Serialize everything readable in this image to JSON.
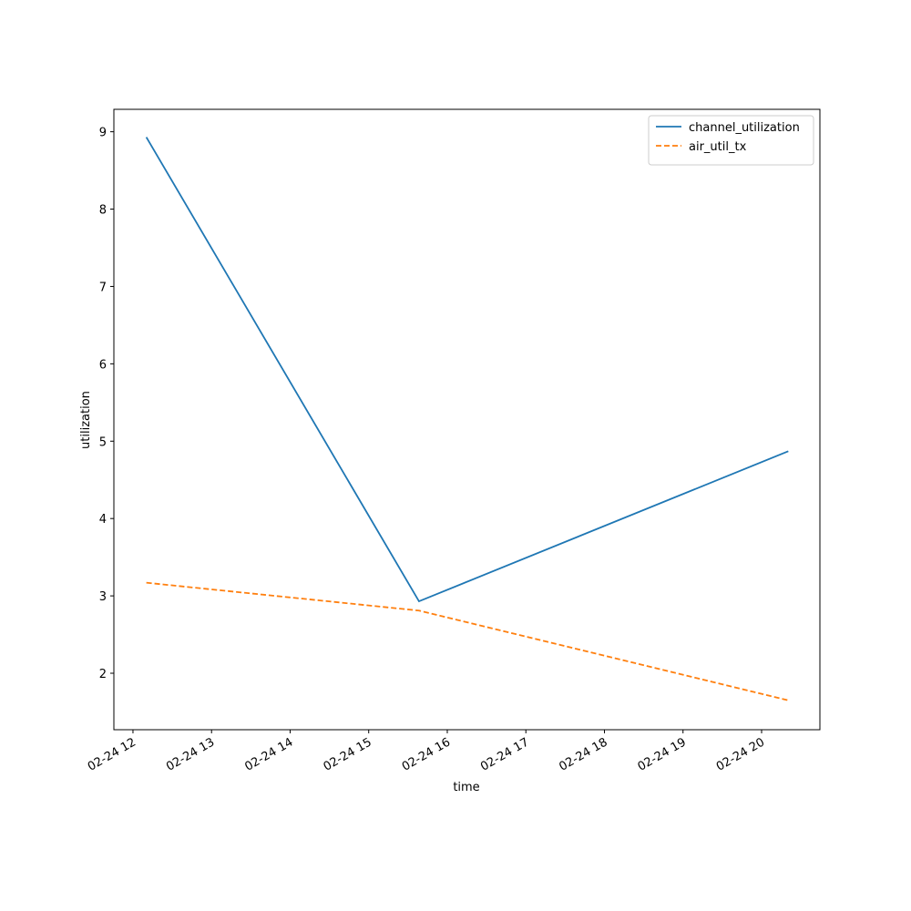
{
  "chart_data": {
    "type": "line",
    "x_label": "time",
    "y_label": "utilization",
    "x": [
      12.17,
      15.64,
      20.34
    ],
    "series": [
      {
        "name": "channel_utilization",
        "color": "#1f77b4",
        "linestyle": "solid",
        "values": [
          8.93,
          2.93,
          4.87
        ]
      },
      {
        "name": "air_util_tx",
        "color": "#ff7f0e",
        "linestyle": "dashed",
        "values": [
          3.17,
          2.81,
          1.65
        ]
      }
    ],
    "xlim": [
      11.757,
      20.742
    ],
    "xticks": [
      {
        "value": 12,
        "label": "02-24 12"
      },
      {
        "value": 13,
        "label": "02-24 13"
      },
      {
        "value": 14,
        "label": "02-24 14"
      },
      {
        "value": 15,
        "label": "02-24 15"
      },
      {
        "value": 16,
        "label": "02-24 16"
      },
      {
        "value": 17,
        "label": "02-24 17"
      },
      {
        "value": 18,
        "label": "02-24 18"
      },
      {
        "value": 19,
        "label": "02-24 19"
      },
      {
        "value": 20,
        "label": "02-24 20"
      }
    ],
    "ylim": [
      1.27,
      9.29
    ],
    "yticks": [
      2,
      3,
      4,
      5,
      6,
      7,
      8,
      9
    ],
    "grid": false,
    "legend": "upper-right"
  }
}
